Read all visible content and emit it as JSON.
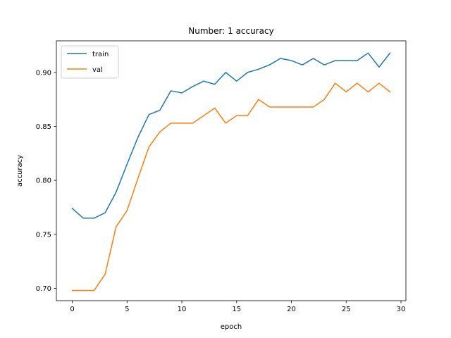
{
  "chart_data": {
    "type": "line",
    "title": "Number: 1 accuracy",
    "xlabel": "epoch",
    "ylabel": "accuracy",
    "xlim": [
      -1.45,
      30.45
    ],
    "ylim": [
      0.6885,
      0.9293
    ],
    "xticks": [
      0,
      5,
      10,
      15,
      20,
      25,
      30
    ],
    "xtick_labels": [
      "0",
      "5",
      "10",
      "15",
      "20",
      "25",
      "30"
    ],
    "yticks": [
      0.7,
      0.75,
      0.8,
      0.85,
      0.9
    ],
    "ytick_labels": [
      "0.70",
      "0.75",
      "0.80",
      "0.85",
      "0.90"
    ],
    "grid": false,
    "legend_position": "upper-left",
    "x": [
      0,
      1,
      2,
      3,
      4,
      5,
      6,
      7,
      8,
      9,
      10,
      11,
      12,
      13,
      14,
      15,
      16,
      17,
      18,
      19,
      20,
      21,
      22,
      23,
      24,
      25,
      26,
      27,
      28,
      29
    ],
    "series": [
      {
        "name": "train",
        "color": "#1f77b4",
        "values": [
          0.774,
          0.765,
          0.765,
          0.77,
          0.789,
          0.815,
          0.84,
          0.861,
          0.865,
          0.883,
          0.881,
          0.887,
          0.892,
          0.889,
          0.9,
          0.892,
          0.9,
          0.903,
          0.907,
          0.913,
          0.911,
          0.907,
          0.913,
          0.907,
          0.911,
          0.911,
          0.911,
          0.918,
          0.905,
          0.918
        ]
      },
      {
        "name": "val",
        "color": "#ff7f0e",
        "values": [
          0.698,
          0.698,
          0.698,
          0.713,
          0.757,
          0.772,
          0.802,
          0.831,
          0.845,
          0.853,
          0.853,
          0.853,
          0.86,
          0.867,
          0.853,
          0.86,
          0.86,
          0.875,
          0.868,
          0.868,
          0.868,
          0.868,
          0.868,
          0.875,
          0.89,
          0.882,
          0.89,
          0.882,
          0.89,
          0.882
        ]
      }
    ]
  }
}
